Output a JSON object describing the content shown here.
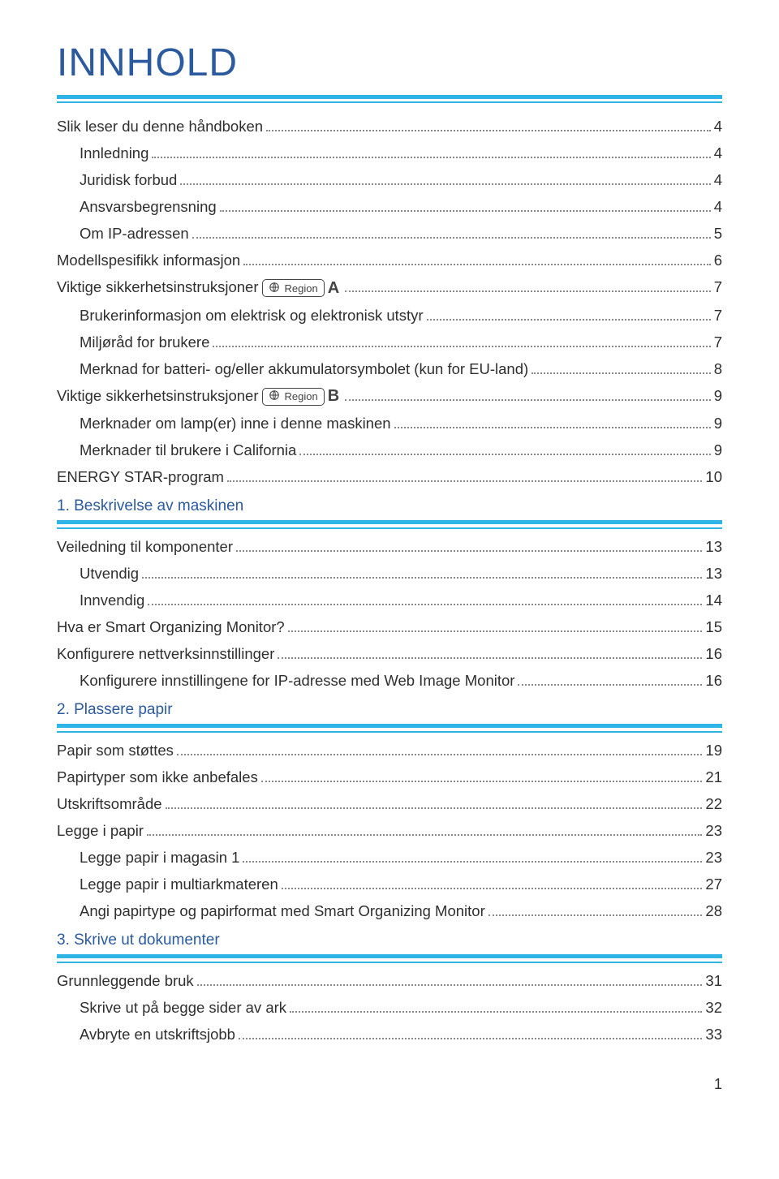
{
  "title": "INNHOLD",
  "colors": {
    "heading_blue": "#2b5a9e",
    "rule_cyan": "#2eb4e6",
    "text": "#2f2f2f",
    "leader": "#888888",
    "badge_border": "#444444"
  },
  "typography": {
    "title_fontsize_pt": 36,
    "body_fontsize_pt": 14,
    "section_fontsize_pt": 14.5,
    "font_family": "Helvetica-like light sans"
  },
  "toc": [
    {
      "label": "Slik leser du denne håndboken",
      "page": "4",
      "indent": 0
    },
    {
      "label": "Innledning",
      "page": "4",
      "indent": 1
    },
    {
      "label": "Juridisk forbud",
      "page": "4",
      "indent": 1
    },
    {
      "label": "Ansvarsbegrensning",
      "page": "4",
      "indent": 1
    },
    {
      "label": "Om IP-adressen",
      "page": "5",
      "indent": 1
    },
    {
      "label": "Modellspesifikk informasjon",
      "page": "6",
      "indent": 0
    },
    {
      "label": "Viktige sikkerhetsinstruksjoner",
      "page": "7",
      "indent": 0,
      "region_letter": "A"
    },
    {
      "label": "Brukerinformasjon om elektrisk og elektronisk utstyr",
      "page": "7",
      "indent": 1
    },
    {
      "label": "Miljøråd for brukere",
      "page": "7",
      "indent": 1
    },
    {
      "label": "Merknad for batteri- og/eller akkumulatorsymbolet (kun for EU-land)",
      "page": "8",
      "indent": 1
    },
    {
      "label": "Viktige sikkerhetsinstruksjoner",
      "page": "9",
      "indent": 0,
      "region_letter": "B"
    },
    {
      "label": "Merknader om lamp(er) inne i denne maskinen",
      "page": "9",
      "indent": 1
    },
    {
      "label": "Merknader til brukere i California",
      "page": "9",
      "indent": 1
    },
    {
      "label": "ENERGY STAR-program",
      "page": "10",
      "indent": 0
    },
    {
      "section": "1. Beskrivelse av maskinen"
    },
    {
      "label": "Veiledning til komponenter",
      "page": "13",
      "indent": 0
    },
    {
      "label": "Utvendig",
      "page": "13",
      "indent": 1
    },
    {
      "label": "Innvendig",
      "page": "14",
      "indent": 1
    },
    {
      "label": "Hva er Smart Organizing Monitor?",
      "page": "15",
      "indent": 0
    },
    {
      "label": "Konfigurere nettverksinnstillinger",
      "page": "16",
      "indent": 0
    },
    {
      "label": "Konfigurere innstillingene for IP-adresse med Web Image Monitor",
      "page": "16",
      "indent": 1
    },
    {
      "section": "2. Plassere papir"
    },
    {
      "label": "Papir som støttes",
      "page": "19",
      "indent": 0
    },
    {
      "label": "Papirtyper som ikke anbefales",
      "page": "21",
      "indent": 0
    },
    {
      "label": "Utskriftsområde",
      "page": "22",
      "indent": 0
    },
    {
      "label": "Legge i papir",
      "page": "23",
      "indent": 0
    },
    {
      "label": "Legge papir i magasin 1",
      "page": "23",
      "indent": 1
    },
    {
      "label": "Legge papir i multiarkmateren",
      "page": "27",
      "indent": 1
    },
    {
      "label": "Angi papirtype og papirformat med Smart Organizing Monitor",
      "page": "28",
      "indent": 1
    },
    {
      "section": "3. Skrive ut dokumenter"
    },
    {
      "label": "Grunnleggende bruk",
      "page": "31",
      "indent": 0
    },
    {
      "label": "Skrive ut på begge sider av ark",
      "page": "32",
      "indent": 1
    },
    {
      "label": "Avbryte en utskriftsjobb",
      "page": "33",
      "indent": 1
    }
  ],
  "region_badge_text": "Region",
  "page_number": "1"
}
